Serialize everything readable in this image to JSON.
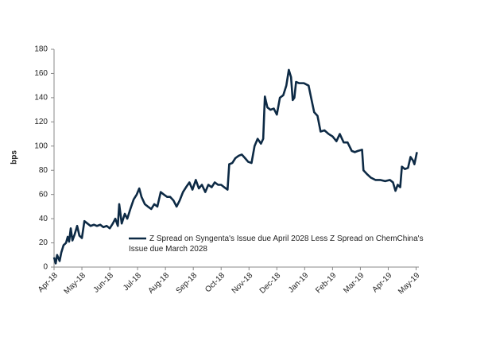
{
  "chart_data": {
    "type": "line",
    "y_label": "bps",
    "xlim": [
      0,
      13.1
    ],
    "xticks": [
      {
        "value": 0,
        "label": "Apr-18"
      },
      {
        "value": 1,
        "label": "May-18"
      },
      {
        "value": 2,
        "label": "Jun-18"
      },
      {
        "value": 3,
        "label": "Jul-18"
      },
      {
        "value": 4,
        "label": "Aug-18"
      },
      {
        "value": 5,
        "label": "Sep-18"
      },
      {
        "value": 6,
        "label": "Oct-18"
      },
      {
        "value": 7,
        "label": "Nov-18"
      },
      {
        "value": 8,
        "label": "Dec-18"
      },
      {
        "value": 9,
        "label": "Jan-19"
      },
      {
        "value": 10,
        "label": "Feb-19"
      },
      {
        "value": 11,
        "label": "Mar-19"
      },
      {
        "value": 12,
        "label": "Apr-19"
      },
      {
        "value": 13,
        "label": "May-19"
      }
    ],
    "ylim": [
      0,
      180
    ],
    "yticks": [
      0,
      20,
      40,
      60,
      80,
      100,
      120,
      140,
      160,
      180
    ],
    "grid": false,
    "x": [
      0,
      0.06,
      0.11,
      0.2,
      0.26,
      0.34,
      0.43,
      0.49,
      0.54,
      0.6,
      0.66,
      0.74,
      0.83,
      0.91,
      1.0,
      1.09,
      1.2,
      1.31,
      1.43,
      1.54,
      1.66,
      1.77,
      1.89,
      2.0,
      2.11,
      2.2,
      2.29,
      2.34,
      2.43,
      2.54,
      2.63,
      2.74,
      2.86,
      2.97,
      3.06,
      3.14,
      3.26,
      3.37,
      3.49,
      3.6,
      3.71,
      3.83,
      3.94,
      4.06,
      4.17,
      4.29,
      4.4,
      4.51,
      4.63,
      4.74,
      4.86,
      4.97,
      5.09,
      5.2,
      5.31,
      5.43,
      5.54,
      5.66,
      5.77,
      5.89,
      6.0,
      6.11,
      6.23,
      6.29,
      6.4,
      6.51,
      6.63,
      6.74,
      6.86,
      6.97,
      7.09,
      7.2,
      7.31,
      7.43,
      7.51,
      7.57,
      7.66,
      7.77,
      7.89,
      8.0,
      8.11,
      8.23,
      8.34,
      8.43,
      8.51,
      8.57,
      8.63,
      8.69,
      8.8,
      8.97,
      9.14,
      9.23,
      9.34,
      9.46,
      9.57,
      9.71,
      9.86,
      10.0,
      10.14,
      10.26,
      10.4,
      10.54,
      10.69,
      10.8,
      10.91,
      11.06,
      11.11,
      11.23,
      11.37,
      11.54,
      11.71,
      11.89,
      12.06,
      12.17,
      12.26,
      12.34,
      12.43,
      12.49,
      12.6,
      12.71,
      12.8,
      12.89,
      12.94,
      13.03
    ],
    "series": [
      {
        "name": "Z Spread on Syngenta's Issue due April 2028 Less Z Spread on ChemChina's Issue due March 2028",
        "color": "#0d2a45",
        "values": [
          8,
          3,
          10,
          5,
          12,
          18,
          20,
          25,
          21,
          32,
          22,
          27,
          34,
          26,
          24,
          38,
          36,
          34,
          35,
          34,
          35,
          33,
          34,
          32,
          36,
          40,
          34,
          52,
          36,
          44,
          40,
          48,
          56,
          60,
          65,
          58,
          52,
          50,
          48,
          52,
          50,
          62,
          60,
          58,
          58,
          55,
          50,
          55,
          62,
          66,
          70,
          64,
          72,
          65,
          68,
          62,
          68,
          66,
          70,
          68,
          68,
          66,
          64,
          85,
          86,
          90,
          92,
          93,
          90,
          87,
          86,
          100,
          106,
          102,
          106,
          141,
          132,
          130,
          131,
          126,
          140,
          142,
          150,
          163,
          157,
          138,
          140,
          153,
          152,
          152,
          150,
          140,
          128,
          125,
          112,
          113,
          110,
          108,
          104,
          110,
          103,
          103,
          96,
          95,
          96,
          97,
          80,
          77,
          74,
          72,
          72,
          71,
          72,
          70,
          63,
          68,
          66,
          83,
          81,
          82,
          91,
          88,
          85,
          95
        ]
      }
    ]
  }
}
